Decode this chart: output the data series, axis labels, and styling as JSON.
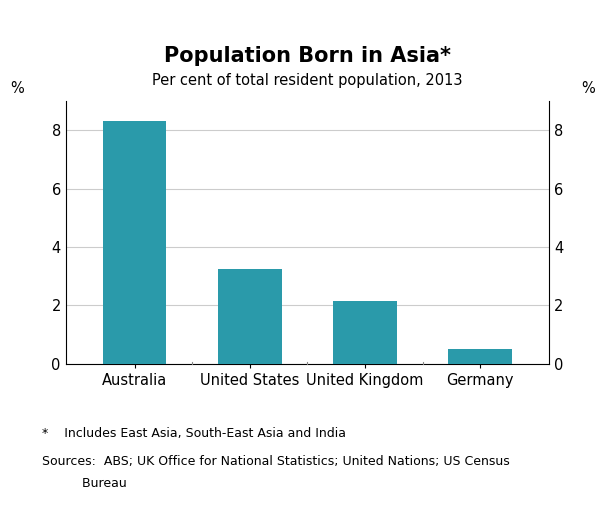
{
  "title": "Population Born in Asia*",
  "subtitle": "Per cent of total resident population, 2013",
  "categories": [
    "Australia",
    "United States",
    "United Kingdom",
    "Germany"
  ],
  "values": [
    8.3,
    3.25,
    2.15,
    0.5
  ],
  "bar_color": "#2a9aaa",
  "ylim": [
    0,
    9
  ],
  "yticks": [
    0,
    2,
    4,
    6,
    8
  ],
  "ylabel_left": "%",
  "ylabel_right": "%",
  "footnote1": "*    Includes East Asia, South-East Asia and India",
  "footnote2_line1": "Sources:  ABS; UK Office for National Statistics; United Nations; US Census",
  "footnote2_line2": "          Bureau",
  "title_fontsize": 15,
  "subtitle_fontsize": 10.5,
  "tick_fontsize": 10.5,
  "footnote_fontsize": 9,
  "background_color": "#ffffff",
  "grid_color": "#cccccc"
}
